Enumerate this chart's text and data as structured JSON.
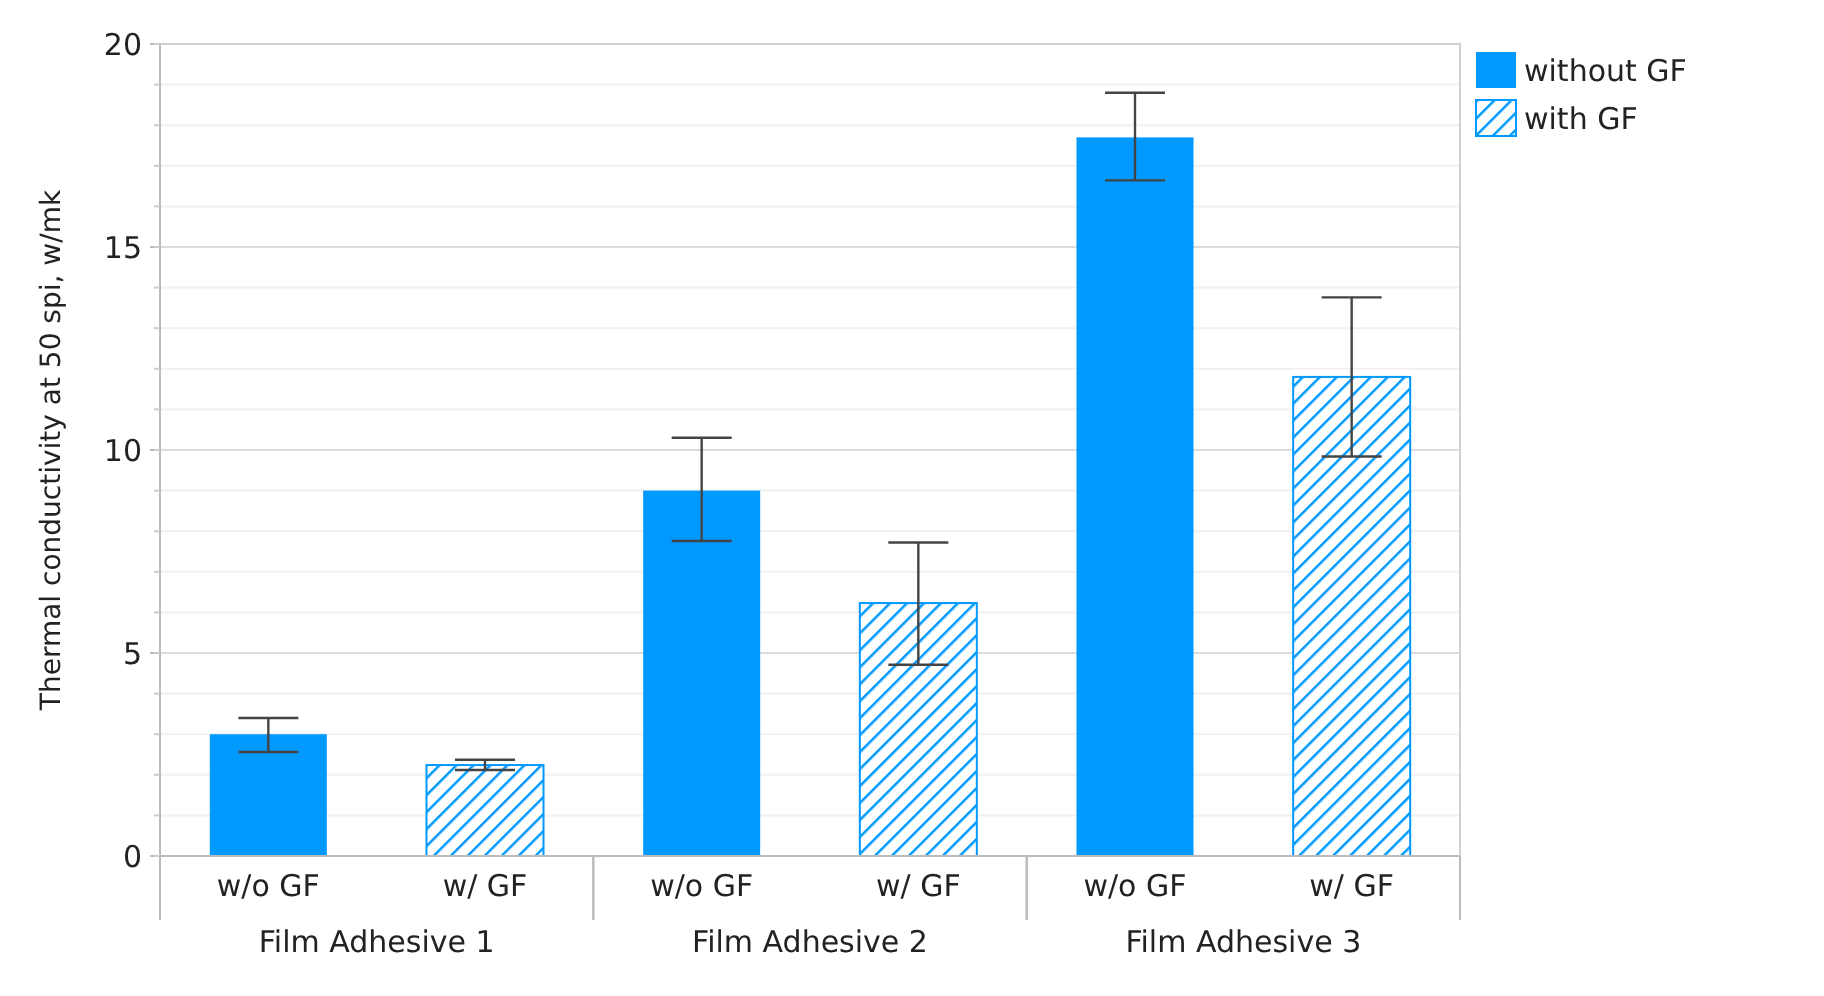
{
  "chart_data": {
    "type": "bar",
    "ylabel": "Thermal conductivity at 50 spi, w/mk",
    "categories": [
      "w/o GF",
      "w/ GF",
      "w/o GF",
      "w/ GF",
      "w/o GF",
      "w/ GF"
    ],
    "series": [
      {
        "name": "without GF",
        "color": "#0099ff",
        "values": [
          3.0,
          null,
          9.0,
          null,
          17.7,
          null
        ],
        "errors": [
          [
            2.56,
            3.4
          ],
          null,
          [
            7.76,
            10.3
          ],
          null,
          [
            16.64,
            18.8
          ],
          null
        ]
      },
      {
        "name": "with GF",
        "color": "#0099ff",
        "values": [
          null,
          2.24,
          null,
          6.23,
          null,
          11.8
        ],
        "errors": [
          null,
          [
            2.12,
            2.37
          ],
          null,
          [
            4.71,
            7.72
          ],
          null,
          [
            9.84,
            13.76
          ]
        ]
      }
    ],
    "ylim": [
      0,
      20
    ],
    "yticks": [
      0,
      5,
      10,
      15,
      20
    ],
    "grid": "y",
    "legend": "top right",
    "annotations": [
      "Film Adhesive 1",
      "Film Adhesive 2",
      "Film Adhesive 3"
    ]
  }
}
